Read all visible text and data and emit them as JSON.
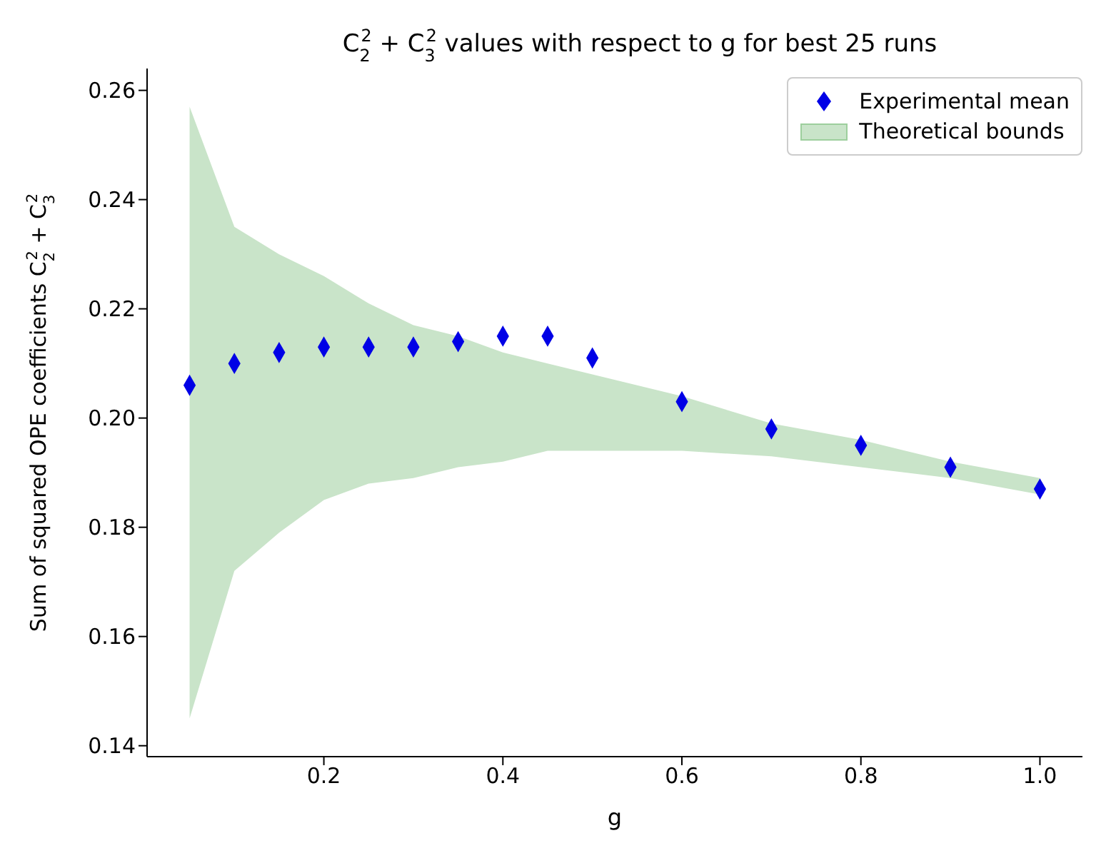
{
  "chart_data": {
    "type": "scatter",
    "title": "C$_{2}$$^{2}$ + C$_{3}$$^{2}$ values with respect to g for best 25 runs",
    "xlabel": "g",
    "ylabel": "Sum of squared OPE coefficients C$_{2}$$^{2}$ + C$_{3}$$^{2}$",
    "x": [
      0.05,
      0.1,
      0.15,
      0.2,
      0.25,
      0.3,
      0.35,
      0.4,
      0.45,
      0.5,
      0.6,
      0.7,
      0.8,
      0.9,
      1.0
    ],
    "series": [
      {
        "name": "Experimental mean",
        "color": "#0000e6",
        "marker": "diamond",
        "values": [
          0.206,
          0.21,
          0.212,
          0.213,
          0.213,
          0.213,
          0.214,
          0.215,
          0.215,
          0.211,
          0.203,
          0.198,
          0.195,
          0.191,
          0.187
        ]
      },
      {
        "name": "Theoretical bounds",
        "type": "area",
        "color": "#c9e4c9",
        "values": [
          null,
          null,
          null,
          null,
          null,
          null,
          null,
          null,
          null,
          null,
          null,
          null,
          null,
          null,
          null
        ],
        "upper": [
          0.257,
          0.235,
          0.23,
          0.226,
          0.221,
          0.217,
          0.215,
          0.212,
          0.21,
          0.208,
          0.204,
          0.199,
          0.196,
          0.192,
          0.189
        ],
        "lower": [
          0.145,
          0.172,
          0.179,
          0.185,
          0.188,
          0.189,
          0.191,
          0.192,
          0.194,
          0.194,
          0.194,
          0.193,
          0.191,
          0.189,
          0.186
        ]
      }
    ],
    "xlim": [
      0.0025,
      1.0475
    ],
    "ylim": [
      0.138,
      0.264
    ],
    "xticks": [
      0.2,
      0.4,
      0.6,
      0.8,
      {
        "value": 1,
        "label": "1.0"
      }
    ],
    "yticks": [
      0.14,
      0.16,
      0.18,
      {
        "value": 0.2,
        "label": "0.20"
      },
      0.22,
      0.24,
      0.26
    ],
    "grid": false,
    "legend": "top right"
  }
}
